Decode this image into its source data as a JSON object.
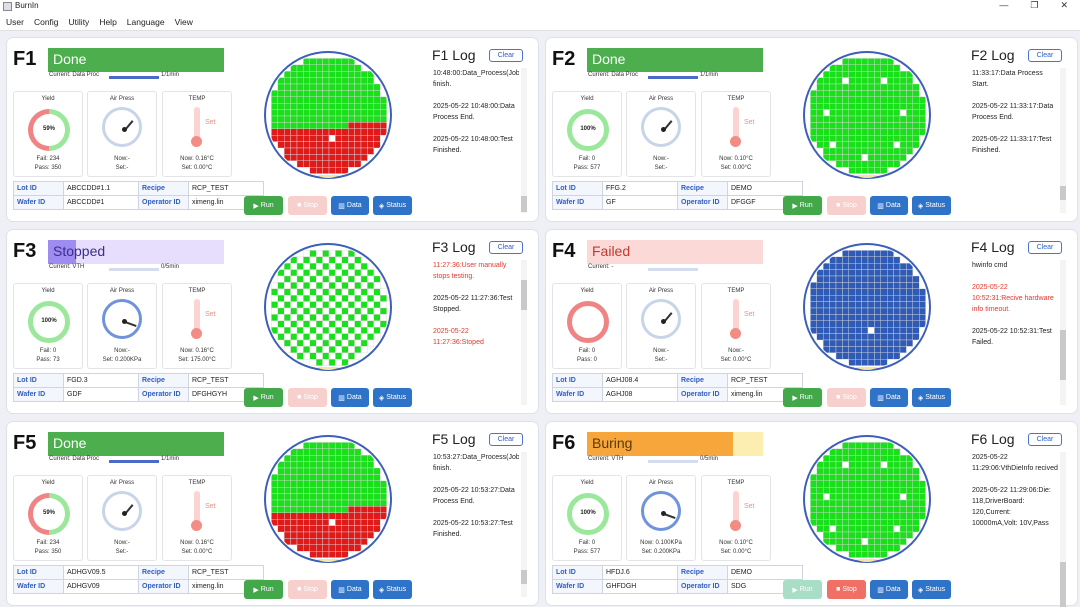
{
  "window": {
    "title": "BurnIn",
    "minimize": "—",
    "maximize": "❐",
    "close": "✕"
  },
  "menu": [
    "User",
    "Config",
    "Utility",
    "Help",
    "Language",
    "View"
  ],
  "colors": {
    "pass_die": "#19e01a",
    "fail_die": "#e01919",
    "blue_die": "#2f5bb6",
    "empty_die": "#ffffff",
    "wafer_edge": "#3d5fb8",
    "notch": "#f5e6a8"
  },
  "buttons": {
    "run": "Run",
    "stop": "Stop",
    "data": "Data",
    "status": "Status",
    "clear": "Clear"
  },
  "labels": {
    "yield": "Yield",
    "air": "Air Press",
    "temp": "TEMP",
    "lot": "Lot ID",
    "recipe": "Recipe",
    "wafer": "Wafer ID",
    "operator": "Operator ID",
    "set_marker": "Set"
  },
  "panels": [
    {
      "id": "F1",
      "status": "Done",
      "current": "Current: Data Proc",
      "progress": 1.0,
      "prog_label": "1/1min",
      "yield_pct": "59%",
      "fail": "Fail: 234",
      "pass": "Pass: 350",
      "air_now": "Now:-",
      "air_set": "Set:-",
      "temp_now": "Now: 0.16°C",
      "temp_set": "Set: 0.00°C",
      "lot": "ABCCDD#1.1",
      "recipe": "RCP_TEST",
      "wafer": "ABCCDD#1",
      "operator": "ximeng.lin",
      "log_title": "F1 Log",
      "log": [
        {
          "t": "10:48:00:Data_Process(Job12) finish.",
          "red": false
        },
        {
          "t": "2025-05-22 10:48:00:Data Process End.",
          "red": false
        },
        {
          "t": "2025-05-22 10:48:00:Test Finished.",
          "red": false
        }
      ]
    },
    {
      "id": "F2",
      "status": "Done",
      "current": "Current: Data Proc",
      "progress": 1.0,
      "prog_label": "1/1min",
      "yield_pct": "100%",
      "fail": "Fail: 0",
      "pass": "Pass: 577",
      "air_now": "Now:-",
      "air_set": "Set:-",
      "temp_now": "Now: 0.10°C",
      "temp_set": "Set: 0.00°C",
      "lot": "FFG.2",
      "recipe": "DEMO",
      "wafer": "GF",
      "operator": "DFGGF",
      "log_title": "F2 Log",
      "log": [
        {
          "t": "11:33:17:Data Process Start.",
          "red": false
        },
        {
          "t": "2025-05-22 11:33:17:Data Process End.",
          "red": false
        },
        {
          "t": "2025-05-22 11:33:17:Test Finished.",
          "red": false
        }
      ]
    },
    {
      "id": "F3",
      "status": "Stopped",
      "current": "Current: VTH",
      "progress": 0.0,
      "prog_label": "0/5min",
      "yield_pct": "100%",
      "fail": "Fail: 0",
      "pass": "Pass: 73",
      "air_now": "Now:-",
      "air_set": "Set: 0.200KPa",
      "temp_now": "Now: 0.16°C",
      "temp_set": "Set: 175.00°C",
      "lot": "FGD.3",
      "recipe": "RCP_TEST",
      "wafer": "GDF",
      "operator": "DFGHGYH",
      "log_title": "F3 Log",
      "log": [
        {
          "t": "11:27:36:User manually stops testing.",
          "red": true
        },
        {
          "t": "2025-05-22 11:27:36:Test Stopped.",
          "red": false
        },
        {
          "t": "2025-05-22 11:27:36:Stoped",
          "red": true
        }
      ]
    },
    {
      "id": "F4",
      "status": "Failed",
      "current": "Current: -",
      "progress": 0.0,
      "prog_label": "",
      "yield_pct": "",
      "fail": "Fail: 0",
      "pass": "Pass: 0",
      "air_now": "Now:-",
      "air_set": "Set:-",
      "temp_now": "Now:-",
      "temp_set": "Set: 0.00°C",
      "lot": "AGHJ08.4",
      "recipe": "RCP_TEST",
      "wafer": "AGHJ08",
      "operator": "ximeng.lin",
      "log_title": "F4 Log",
      "log": [
        {
          "t": "hwinfo cmd",
          "red": false
        },
        {
          "t": "2025-05-22 10:52:31:Recive hardware info timeout.",
          "red": true
        },
        {
          "t": "2025-05-22 10:52:31:Test Failed.",
          "red": false
        }
      ]
    },
    {
      "id": "F5",
      "status": "Done",
      "current": "Current: Data Proc",
      "progress": 1.0,
      "prog_label": "1/1min",
      "yield_pct": "59%",
      "fail": "Fail: 234",
      "pass": "Pass: 350",
      "air_now": "Now:-",
      "air_set": "Set:-",
      "temp_now": "Now: 0.16°C",
      "temp_set": "Set: 0.00°C",
      "lot": "ADHGV09.5",
      "recipe": "RCP_TEST",
      "wafer": "ADHGV09",
      "operator": "ximeng.lin",
      "log_title": "F5 Log",
      "log": [
        {
          "t": "10:53:27:Data_Process(Job12) finish.",
          "red": false
        },
        {
          "t": "2025-05-22 10:53:27:Data Process End.",
          "red": false
        },
        {
          "t": "2025-05-22 10:53:27:Test Finished.",
          "red": false
        }
      ]
    },
    {
      "id": "F6",
      "status": "Buring",
      "current": "Current: VTH",
      "progress": 0.0,
      "prog_label": "0/5min",
      "yield_pct": "100%",
      "fail": "Fail: 0",
      "pass": "Pass: 577",
      "air_now": "Now: 0.100KPa",
      "air_set": "Set: 0.200KPa",
      "temp_now": "Now: 0.10°C",
      "temp_set": "Set: 0.00°C",
      "lot": "HFDJ.6",
      "recipe": "DEMO",
      "wafer": "GHFDGH",
      "operator": "SDG",
      "log_title": "F6 Log",
      "log": [
        {
          "t": "2025-05-22 11:29:06:VthDieInfo recived",
          "red": false
        },
        {
          "t": "2025-05-22 11:29:06:Die: 118,DriverBoard: 120,Current: 10000mA,Volt: 10V,Pass",
          "red": false
        }
      ]
    }
  ]
}
